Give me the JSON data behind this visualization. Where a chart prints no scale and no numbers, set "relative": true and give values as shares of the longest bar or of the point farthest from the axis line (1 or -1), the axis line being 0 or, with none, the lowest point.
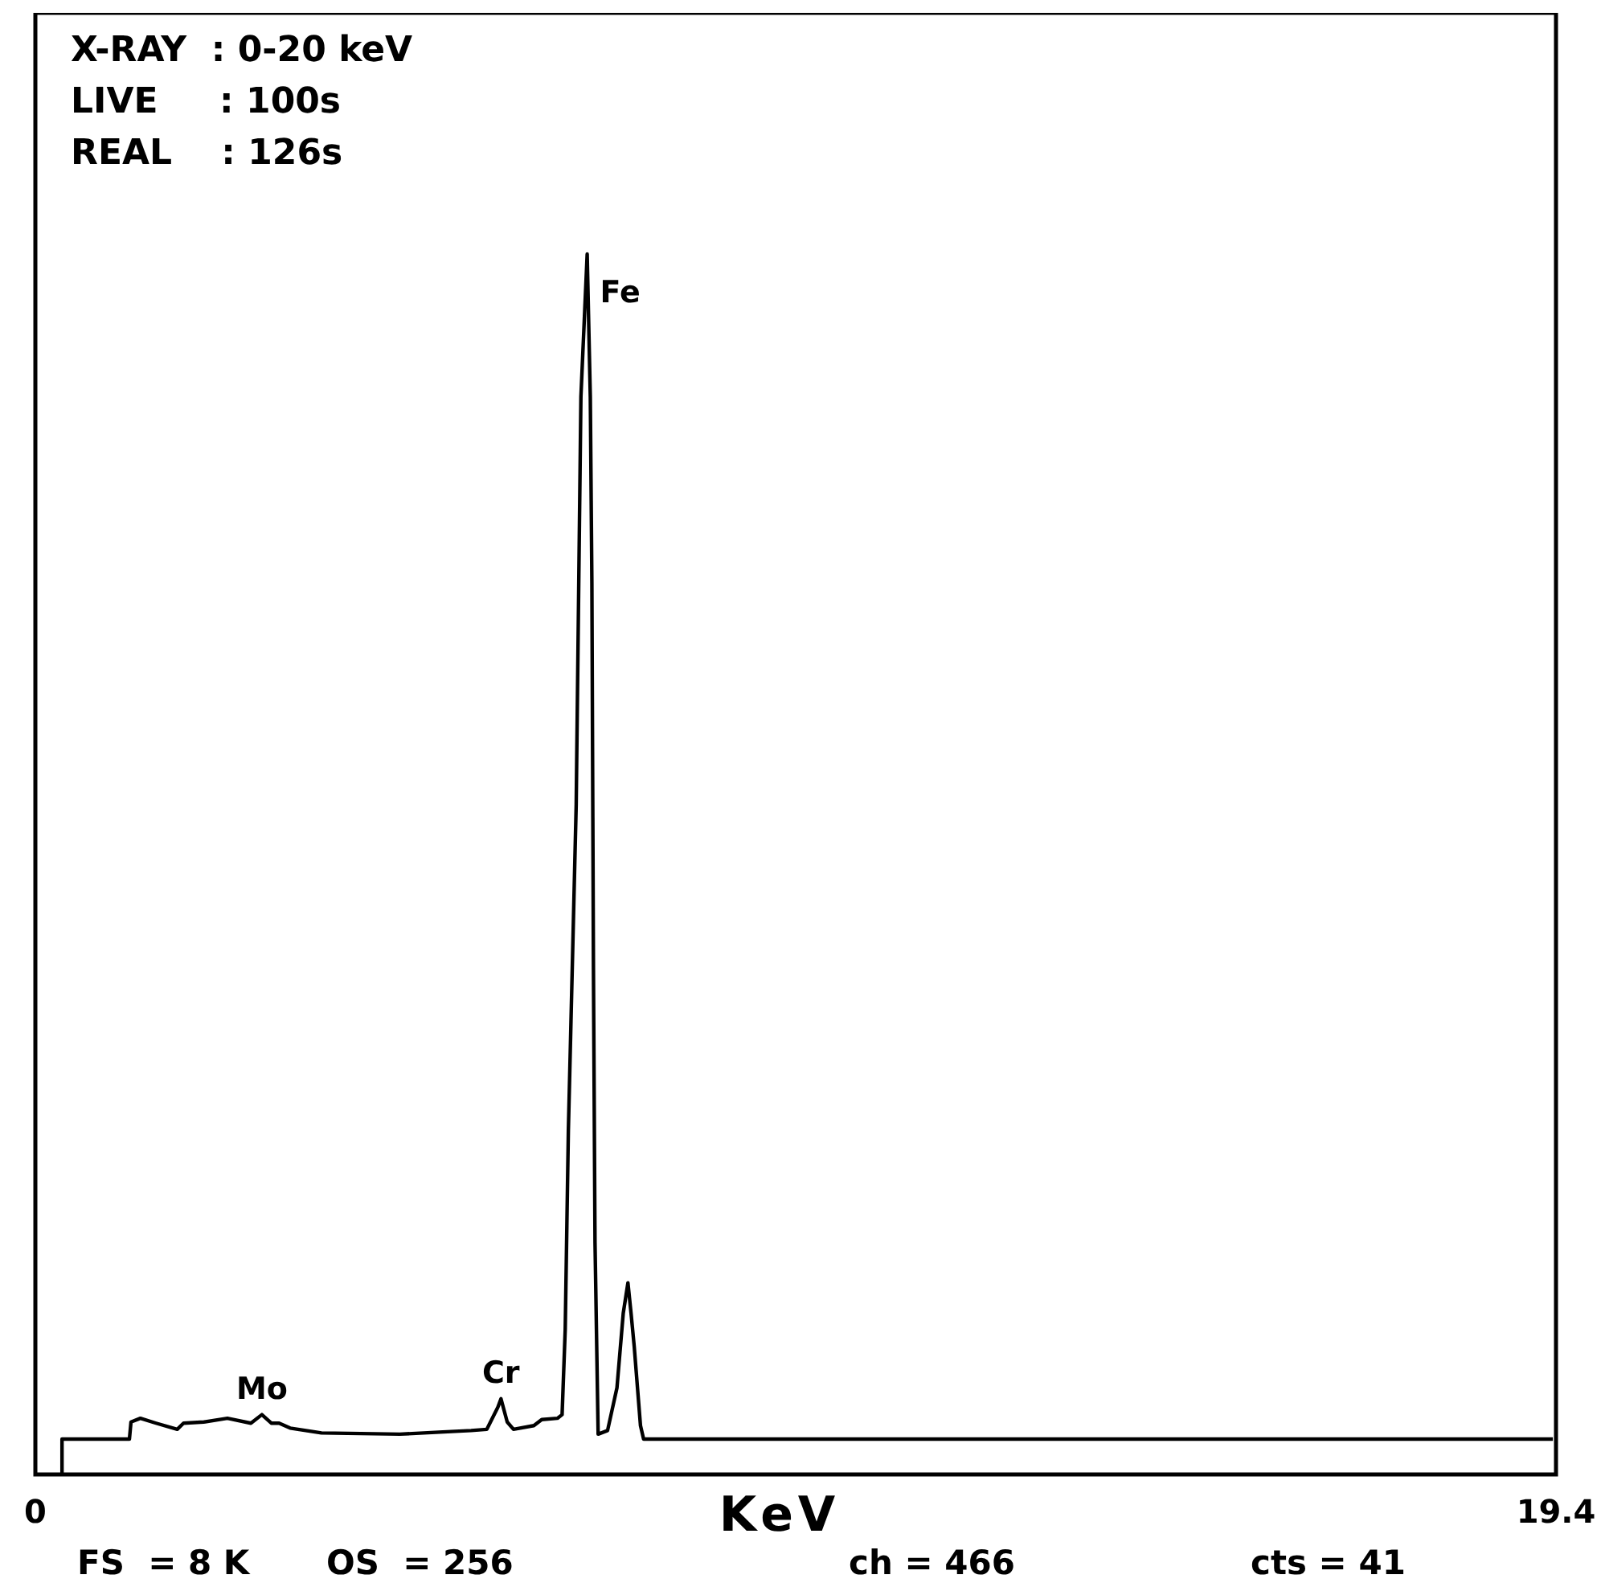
{
  "chart_data": {
    "type": "line",
    "relative": true,
    "xlabel": "KeV",
    "xlim": [
      0,
      19.4
    ],
    "xticks": [
      0,
      19.4
    ],
    "grid": false,
    "line_style": "solid",
    "x": [
      0.34,
      0.34,
      1.2,
      1.22,
      1.34,
      1.54,
      1.81,
      1.89,
      2.15,
      2.45,
      2.75,
      2.89,
      3.01,
      3.11,
      3.25,
      3.65,
      4.65,
      5.56,
      5.76,
      5.9,
      5.94,
      6.02,
      6.1,
      6.36,
      6.46,
      6.66,
      6.72,
      6.76,
      6.8,
      6.9,
      6.96,
      7.04,
      7.08,
      7.1,
      7.12,
      7.14,
      7.18,
      7.3,
      7.42,
      7.5,
      7.56,
      7.6,
      7.64,
      7.72,
      7.76,
      19.36
    ],
    "series": [
      {
        "color": "#000000",
        "values": [
          0,
          0.029,
          0.029,
          0.043,
          0.046,
          0.042,
          0.037,
          0.042,
          0.043,
          0.046,
          0.042,
          0.049,
          0.042,
          0.042,
          0.038,
          0.034,
          0.033,
          0.036,
          0.037,
          0.055,
          0.062,
          0.043,
          0.037,
          0.04,
          0.045,
          0.046,
          0.049,
          0.119,
          0.282,
          0.549,
          0.883,
          1,
          0.883,
          0.73,
          0.414,
          0.19,
          0.033,
          0.036,
          0.071,
          0.132,
          0.157,
          0.132,
          0.105,
          0.04,
          0.029,
          0.029
        ]
      }
    ],
    "annotations": [
      "X-RAY  : 0-20 keV",
      "LIVE     : 100s",
      "REAL    : 126s",
      "FS  = 8 K",
      "OS  = 256",
      "ch = 466",
      "cts = 41",
      {
        "text": "Mo",
        "x": 2.89,
        "y": 0.049
      },
      {
        "text": "Cr",
        "x": 5.94,
        "y": 0.062
      },
      {
        "text": "Fe",
        "x": 7.04,
        "y": 1
      }
    ]
  }
}
